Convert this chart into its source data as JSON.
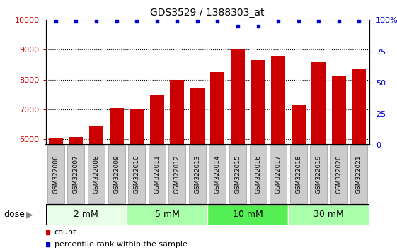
{
  "title": "GDS3529 / 1388303_at",
  "samples": [
    "GSM322006",
    "GSM322007",
    "GSM322008",
    "GSM322009",
    "GSM322010",
    "GSM322011",
    "GSM322012",
    "GSM322013",
    "GSM322014",
    "GSM322015",
    "GSM322016",
    "GSM322017",
    "GSM322018",
    "GSM322019",
    "GSM322020",
    "GSM322021"
  ],
  "counts": [
    6020,
    6060,
    6450,
    7050,
    7000,
    7500,
    8000,
    7700,
    8250,
    9000,
    8650,
    8800,
    7150,
    8580,
    8100,
    8350
  ],
  "percentiles": [
    99,
    99,
    99,
    99,
    99,
    99,
    99,
    99,
    99,
    95,
    95,
    99,
    99,
    99,
    99,
    99
  ],
  "ylim_left": [
    5800,
    10000
  ],
  "ylim_right": [
    0,
    100
  ],
  "bar_color": "#cc0000",
  "dot_color": "#0000cc",
  "dose_groups": [
    {
      "label": "2 mM",
      "start": 0,
      "end": 3,
      "color": "#e8ffe8"
    },
    {
      "label": "5 mM",
      "start": 4,
      "end": 7,
      "color": "#aaffaa"
    },
    {
      "label": "10 mM",
      "start": 8,
      "end": 11,
      "color": "#55ee55"
    },
    {
      "label": "30 mM",
      "start": 12,
      "end": 15,
      "color": "#aaffaa"
    }
  ],
  "dose_label": "dose",
  "legend_count": "count",
  "legend_percentile": "percentile rank within the sample",
  "yticks_left": [
    6000,
    7000,
    8000,
    9000,
    10000
  ],
  "yticks_right": [
    0,
    25,
    50,
    75,
    100
  ],
  "gridline_color": "#000000",
  "tick_bg_color": "#cccccc",
  "tick_border_color": "#999999"
}
